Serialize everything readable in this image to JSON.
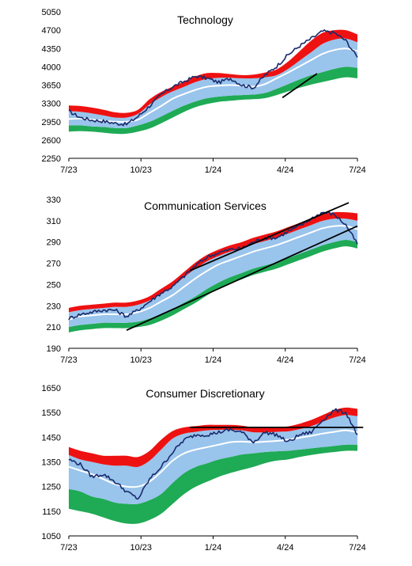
{
  "chart_data": [
    {
      "type": "line",
      "title": "Technology",
      "ylim": [
        2250,
        5050
      ],
      "yticks": [
        2250,
        2600,
        2950,
        3300,
        3650,
        4000,
        4350,
        4700,
        5050
      ],
      "xticks": [
        "7/23",
        "10/23",
        "1/24",
        "4/24",
        "7/24"
      ],
      "x": [
        0,
        0.04,
        0.08,
        0.12,
        0.16,
        0.2,
        0.24,
        0.28,
        0.32,
        0.36,
        0.4,
        0.44,
        0.48,
        0.52,
        0.56,
        0.6,
        0.64,
        0.68,
        0.72,
        0.76,
        0.8,
        0.84,
        0.88,
        0.92,
        0.96,
        1.0
      ],
      "colors": {
        "price": "#1a2a6c",
        "mean": "#ffffff",
        "upper_band": "#ee1111",
        "mid_band": "#99c4ec",
        "lower_band": "#1faa55",
        "trendline": "#000000"
      },
      "series": [
        {
          "key": "price",
          "values": [
            3150,
            3030,
            2980,
            2960,
            2920,
            2900,
            3050,
            3250,
            3470,
            3620,
            3720,
            3820,
            3780,
            3700,
            3780,
            3650,
            3600,
            3840,
            4010,
            4230,
            4400,
            4540,
            4680,
            4650,
            4500,
            4180
          ]
        },
        {
          "key": "mean",
          "values": [
            3000,
            3010,
            2990,
            2970,
            2950,
            2950,
            2990,
            3120,
            3250,
            3390,
            3480,
            3560,
            3620,
            3640,
            3650,
            3640,
            3620,
            3670,
            3780,
            3890,
            4010,
            4130,
            4250,
            4320,
            4350,
            4300
          ]
        },
        {
          "key": "red_top",
          "values": [
            3260,
            3250,
            3220,
            3180,
            3130,
            3120,
            3180,
            3380,
            3520,
            3620,
            3720,
            3820,
            3880,
            3880,
            3860,
            3840,
            3850,
            3890,
            3950,
            4100,
            4300,
            4500,
            4650,
            4700,
            4700,
            4620
          ]
        },
        {
          "key": "red_bottom",
          "values": [
            3150,
            3140,
            3110,
            3070,
            3030,
            3030,
            3100,
            3280,
            3420,
            3530,
            3620,
            3710,
            3770,
            3790,
            3790,
            3780,
            3780,
            3800,
            3840,
            3960,
            4120,
            4280,
            4440,
            4520,
            4540,
            4470
          ]
        },
        {
          "key": "green_top",
          "values": [
            2880,
            2880,
            2860,
            2850,
            2830,
            2830,
            2880,
            2950,
            3050,
            3160,
            3260,
            3340,
            3400,
            3430,
            3450,
            3460,
            3470,
            3500,
            3580,
            3670,
            3760,
            3840,
            3900,
            3960,
            4000,
            3980
          ]
        },
        {
          "key": "green_bottom",
          "values": [
            2760,
            2770,
            2760,
            2740,
            2720,
            2720,
            2760,
            2820,
            2920,
            3030,
            3140,
            3230,
            3290,
            3330,
            3350,
            3370,
            3380,
            3400,
            3460,
            3530,
            3600,
            3660,
            3710,
            3760,
            3800,
            3780
          ]
        }
      ],
      "trendlines": [
        {
          "x": [
            0.74,
            0.86
          ],
          "y": [
            3410,
            3870
          ]
        }
      ]
    },
    {
      "type": "line",
      "title": "Communication Services",
      "ylim": [
        190,
        330
      ],
      "yticks": [
        190,
        210,
        230,
        250,
        270,
        290,
        310,
        330
      ],
      "xticks": [
        "7/23",
        "10/23",
        "1/24",
        "4/24",
        "7/24"
      ],
      "x": [
        0,
        0.04,
        0.08,
        0.12,
        0.16,
        0.2,
        0.24,
        0.28,
        0.32,
        0.36,
        0.4,
        0.44,
        0.48,
        0.52,
        0.56,
        0.6,
        0.64,
        0.68,
        0.72,
        0.76,
        0.8,
        0.84,
        0.88,
        0.92,
        0.96,
        1.0
      ],
      "colors": {
        "price": "#1a2a6c",
        "mean": "#ffffff",
        "upper_band": "#ee1111",
        "mid_band": "#99c4ec",
        "lower_band": "#1faa55",
        "trendline": "#000000"
      },
      "series": [
        {
          "key": "price",
          "values": [
            218,
            222,
            224,
            226,
            226,
            220,
            226,
            234,
            242,
            248,
            258,
            268,
            276,
            280,
            283,
            284,
            290,
            294,
            294,
            300,
            305,
            312,
            318,
            316,
            306,
            288
          ]
        },
        {
          "key": "mean",
          "values": [
            217,
            220,
            221,
            222,
            222,
            222,
            224,
            228,
            234,
            240,
            248,
            256,
            263,
            269,
            273,
            277,
            281,
            284,
            287,
            291,
            295,
            299,
            303,
            305,
            305,
            302
          ]
        },
        {
          "key": "red_top",
          "values": [
            228,
            230,
            231,
            232,
            233,
            233,
            235,
            239,
            246,
            253,
            262,
            271,
            278,
            283,
            287,
            290,
            294,
            297,
            300,
            304,
            308,
            312,
            316,
            318,
            318,
            317
          ]
        },
        {
          "key": "red_bottom",
          "values": [
            224,
            226,
            227,
            228,
            229,
            229,
            231,
            235,
            241,
            248,
            257,
            265,
            272,
            277,
            281,
            284,
            288,
            291,
            294,
            298,
            302,
            306,
            310,
            312,
            312,
            310
          ]
        },
        {
          "key": "green_top",
          "values": [
            210,
            212,
            213,
            214,
            214,
            214,
            215,
            218,
            222,
            227,
            233,
            239,
            246,
            252,
            257,
            261,
            265,
            268,
            271,
            275,
            279,
            283,
            287,
            290,
            292,
            290
          ]
        },
        {
          "key": "green_bottom",
          "values": [
            205,
            207,
            208,
            209,
            209,
            209,
            210,
            212,
            216,
            221,
            227,
            233,
            240,
            246,
            251,
            255,
            259,
            262,
            265,
            269,
            273,
            277,
            281,
            284,
            286,
            284
          ]
        }
      ],
      "trendlines": [
        {
          "x": [
            0.2,
            1.0
          ],
          "y": [
            207,
            305
          ]
        },
        {
          "x": [
            0.42,
            0.97
          ],
          "y": [
            263,
            327
          ]
        }
      ]
    },
    {
      "type": "line",
      "title": "Consumer Discretionary",
      "ylim": [
        1050,
        1650
      ],
      "yticks": [
        1050,
        1150,
        1250,
        1350,
        1450,
        1550,
        1650
      ],
      "xticks": [
        "7/23",
        "10/23",
        "1/24",
        "4/24",
        "7/24"
      ],
      "x": [
        0,
        0.04,
        0.08,
        0.12,
        0.16,
        0.2,
        0.24,
        0.28,
        0.32,
        0.36,
        0.4,
        0.44,
        0.48,
        0.52,
        0.56,
        0.6,
        0.64,
        0.68,
        0.72,
        0.76,
        0.8,
        0.84,
        0.88,
        0.92,
        0.96,
        1.0
      ],
      "colors": {
        "price": "#1a2a6c",
        "mean": "#ffffff",
        "upper_band": "#ee1111",
        "mid_band": "#99c4ec",
        "lower_band": "#1faa55",
        "trendline": "#000000"
      },
      "series": [
        {
          "key": "price",
          "values": [
            1360,
            1340,
            1290,
            1300,
            1270,
            1230,
            1200,
            1280,
            1330,
            1390,
            1440,
            1460,
            1460,
            1470,
            1480,
            1470,
            1430,
            1470,
            1460,
            1430,
            1460,
            1470,
            1520,
            1560,
            1550,
            1460
          ]
        },
        {
          "key": "mean",
          "values": [
            1330,
            1315,
            1300,
            1280,
            1260,
            1250,
            1250,
            1270,
            1310,
            1355,
            1385,
            1400,
            1410,
            1420,
            1430,
            1432,
            1430,
            1432,
            1435,
            1440,
            1448,
            1456,
            1465,
            1472,
            1478,
            1470
          ]
        },
        {
          "key": "red_top",
          "values": [
            1410,
            1395,
            1385,
            1375,
            1375,
            1375,
            1370,
            1395,
            1440,
            1475,
            1490,
            1495,
            1500,
            1500,
            1500,
            1497,
            1490,
            1490,
            1492,
            1494,
            1505,
            1520,
            1540,
            1560,
            1570,
            1565
          ]
        },
        {
          "key": "red_bottom",
          "values": [
            1378,
            1360,
            1350,
            1340,
            1335,
            1335,
            1330,
            1355,
            1400,
            1445,
            1465,
            1472,
            1478,
            1480,
            1480,
            1478,
            1470,
            1470,
            1472,
            1474,
            1483,
            1495,
            1513,
            1530,
            1540,
            1535
          ]
        },
        {
          "key": "green_top",
          "values": [
            1240,
            1230,
            1210,
            1200,
            1185,
            1180,
            1180,
            1195,
            1220,
            1265,
            1305,
            1330,
            1345,
            1360,
            1370,
            1380,
            1385,
            1390,
            1393,
            1395,
            1400,
            1405,
            1410,
            1415,
            1420,
            1420
          ]
        },
        {
          "key": "green_bottom",
          "values": [
            1160,
            1150,
            1140,
            1125,
            1110,
            1100,
            1100,
            1115,
            1140,
            1180,
            1220,
            1250,
            1270,
            1290,
            1305,
            1318,
            1330,
            1345,
            1355,
            1360,
            1370,
            1378,
            1385,
            1390,
            1395,
            1395
          ]
        }
      ],
      "trendlines": [
        {
          "x": [
            0.42,
            1.02
          ],
          "y": [
            1490,
            1490
          ]
        }
      ]
    }
  ]
}
